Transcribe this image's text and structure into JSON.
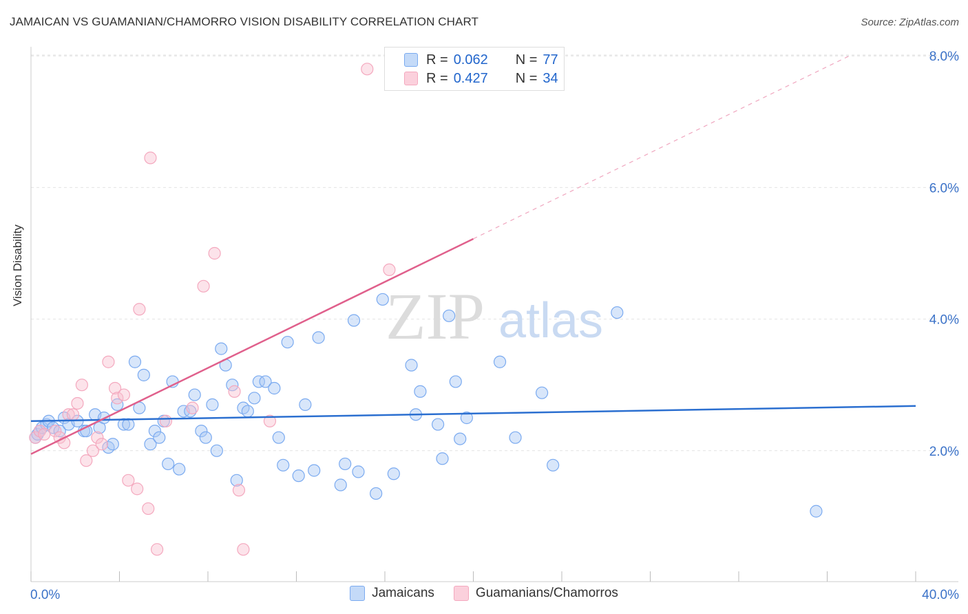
{
  "header": {
    "title": "JAMAICAN VS GUAMANIAN/CHAMORRO VISION DISABILITY CORRELATION CHART",
    "source": "Source: ZipAtlas.com"
  },
  "watermark": {
    "zip": "ZIP",
    "atlas": "atlas"
  },
  "legend": {
    "rows": [
      {
        "r_label": "R =",
        "r_value": "0.062",
        "n_label": "N =",
        "n_value": "77",
        "color": "#7aaaf0"
      },
      {
        "r_label": "R =",
        "r_value": "0.427",
        "n_label": "N =",
        "n_value": "34",
        "color": "#f4a8be"
      }
    ]
  },
  "bottom_legend": [
    {
      "label": "Jamaicans",
      "color": "#a8c8f4"
    },
    {
      "label": "Guamanians/Chamorros",
      "color": "#f8c0d0"
    }
  ],
  "colors": {
    "blue": "#2b6fd0",
    "pink": "#e0608c",
    "axis_text": "#3b72c8"
  },
  "chart_data": {
    "type": "scatter",
    "title": "JAMAICAN VS GUAMANIAN/CHAMORRO VISION DISABILITY CORRELATION CHART",
    "xlabel": "",
    "ylabel": "Vision Disability",
    "xlim": [
      0,
      40
    ],
    "ylim": [
      0,
      8.4
    ],
    "x_ticks": [
      "0.0%",
      "40.0%"
    ],
    "y_ticks": [
      {
        "value": 2,
        "label": "2.0%"
      },
      {
        "value": 4,
        "label": "4.0%"
      },
      {
        "value": 6,
        "label": "6.0%"
      },
      {
        "value": 8,
        "label": "8.0%"
      }
    ],
    "grid": true,
    "legend_position": "top-center",
    "series": [
      {
        "name": "Jamaicans",
        "color": "#7aaaf0",
        "trend": {
          "x0": 0,
          "y0": 2.45,
          "x1": 40,
          "y1": 2.68
        },
        "points": [
          [
            0.2,
            2.2
          ],
          [
            0.3,
            2.25
          ],
          [
            0.4,
            2.3
          ],
          [
            0.5,
            2.35
          ],
          [
            0.7,
            2.4
          ],
          [
            0.8,
            2.45
          ],
          [
            1.0,
            2.35
          ],
          [
            1.3,
            2.3
          ],
          [
            1.5,
            2.5
          ],
          [
            1.7,
            2.4
          ],
          [
            2.1,
            2.45
          ],
          [
            2.4,
            2.3
          ],
          [
            2.5,
            2.3
          ],
          [
            2.9,
            2.55
          ],
          [
            3.1,
            2.35
          ],
          [
            3.3,
            2.5
          ],
          [
            3.5,
            2.05
          ],
          [
            3.7,
            2.1
          ],
          [
            3.9,
            2.7
          ],
          [
            4.2,
            2.4
          ],
          [
            4.4,
            2.4
          ],
          [
            4.7,
            3.35
          ],
          [
            4.9,
            2.65
          ],
          [
            5.1,
            3.15
          ],
          [
            5.4,
            2.1
          ],
          [
            5.6,
            2.3
          ],
          [
            5.8,
            2.2
          ],
          [
            6.0,
            2.45
          ],
          [
            6.2,
            1.8
          ],
          [
            6.4,
            3.05
          ],
          [
            6.7,
            1.72
          ],
          [
            6.9,
            2.6
          ],
          [
            7.2,
            2.6
          ],
          [
            7.4,
            2.85
          ],
          [
            7.7,
            2.3
          ],
          [
            7.9,
            2.2
          ],
          [
            8.2,
            2.7
          ],
          [
            8.4,
            2.0
          ],
          [
            8.6,
            3.55
          ],
          [
            8.8,
            3.3
          ],
          [
            9.1,
            3.0
          ],
          [
            9.3,
            1.55
          ],
          [
            9.6,
            2.65
          ],
          [
            9.8,
            2.6
          ],
          [
            10.1,
            2.8
          ],
          [
            10.3,
            3.05
          ],
          [
            10.6,
            3.05
          ],
          [
            11.0,
            2.95
          ],
          [
            11.2,
            2.2
          ],
          [
            11.4,
            1.78
          ],
          [
            11.6,
            3.65
          ],
          [
            12.1,
            1.62
          ],
          [
            12.4,
            2.7
          ],
          [
            12.8,
            1.7
          ],
          [
            13.0,
            3.72
          ],
          [
            14.0,
            1.48
          ],
          [
            14.2,
            1.8
          ],
          [
            14.6,
            3.98
          ],
          [
            14.8,
            1.68
          ],
          [
            15.6,
            1.35
          ],
          [
            15.9,
            4.3
          ],
          [
            16.4,
            1.65
          ],
          [
            17.2,
            3.3
          ],
          [
            17.4,
            2.55
          ],
          [
            17.6,
            2.9
          ],
          [
            18.4,
            2.4
          ],
          [
            18.6,
            1.88
          ],
          [
            18.9,
            4.05
          ],
          [
            19.2,
            3.05
          ],
          [
            19.4,
            2.18
          ],
          [
            19.7,
            2.5
          ],
          [
            21.2,
            3.35
          ],
          [
            21.9,
            2.2
          ],
          [
            23.1,
            2.88
          ],
          [
            23.6,
            1.78
          ],
          [
            26.5,
            4.1
          ],
          [
            35.5,
            1.08
          ]
        ]
      },
      {
        "name": "Guamanians/Chamorros",
        "color": "#f4a8be",
        "trend": {
          "x0": 0,
          "y0": 1.95,
          "x1": 20,
          "y1": 5.22,
          "dash_to_x": 37,
          "dash_to_y": 8.0
        },
        "points": [
          [
            0.2,
            2.2
          ],
          [
            0.4,
            2.3
          ],
          [
            0.6,
            2.25
          ],
          [
            1.1,
            2.3
          ],
          [
            1.3,
            2.2
          ],
          [
            1.5,
            2.12
          ],
          [
            1.7,
            2.55
          ],
          [
            1.9,
            2.55
          ],
          [
            2.1,
            2.72
          ],
          [
            2.3,
            3.0
          ],
          [
            2.5,
            1.85
          ],
          [
            2.8,
            2.0
          ],
          [
            3.0,
            2.2
          ],
          [
            3.2,
            2.1
          ],
          [
            3.5,
            3.35
          ],
          [
            3.8,
            2.95
          ],
          [
            3.9,
            2.8
          ],
          [
            4.2,
            2.85
          ],
          [
            4.4,
            1.55
          ],
          [
            4.8,
            1.42
          ],
          [
            4.9,
            4.15
          ],
          [
            5.3,
            1.12
          ],
          [
            5.4,
            6.45
          ],
          [
            5.7,
            0.5
          ],
          [
            6.1,
            2.45
          ],
          [
            7.3,
            2.65
          ],
          [
            7.8,
            4.5
          ],
          [
            8.3,
            5.0
          ],
          [
            9.2,
            2.9
          ],
          [
            9.4,
            1.4
          ],
          [
            9.6,
            0.5
          ],
          [
            10.8,
            2.45
          ],
          [
            15.2,
            7.8
          ],
          [
            16.2,
            4.75
          ]
        ]
      }
    ]
  }
}
